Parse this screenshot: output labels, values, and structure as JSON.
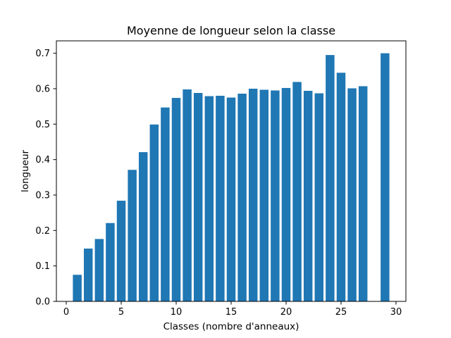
{
  "chart_data": {
    "type": "bar",
    "title": "Moyenne de longueur selon la classe",
    "xlabel": "Classes (nombre d'anneaux)",
    "ylabel": "longueur",
    "xlim": [
      -0.9,
      30.9
    ],
    "ylim": [
      0,
      0.735
    ],
    "xticks": [
      0,
      5,
      10,
      15,
      20,
      25,
      30
    ],
    "yticks": [
      0.0,
      0.1,
      0.2,
      0.3,
      0.4,
      0.5,
      0.6,
      0.7
    ],
    "grid": false,
    "bar_color": "#1f77b4",
    "x": [
      1,
      2,
      3,
      4,
      5,
      6,
      7,
      8,
      9,
      10,
      11,
      12,
      13,
      14,
      15,
      16,
      17,
      18,
      19,
      20,
      21,
      22,
      23,
      24,
      25,
      26,
      27,
      29
    ],
    "values": [
      0.075,
      0.149,
      0.176,
      0.221,
      0.284,
      0.371,
      0.421,
      0.499,
      0.547,
      0.574,
      0.598,
      0.588,
      0.579,
      0.58,
      0.575,
      0.586,
      0.6,
      0.597,
      0.595,
      0.602,
      0.619,
      0.594,
      0.587,
      0.695,
      0.645,
      0.601,
      0.607,
      0.7
    ]
  }
}
